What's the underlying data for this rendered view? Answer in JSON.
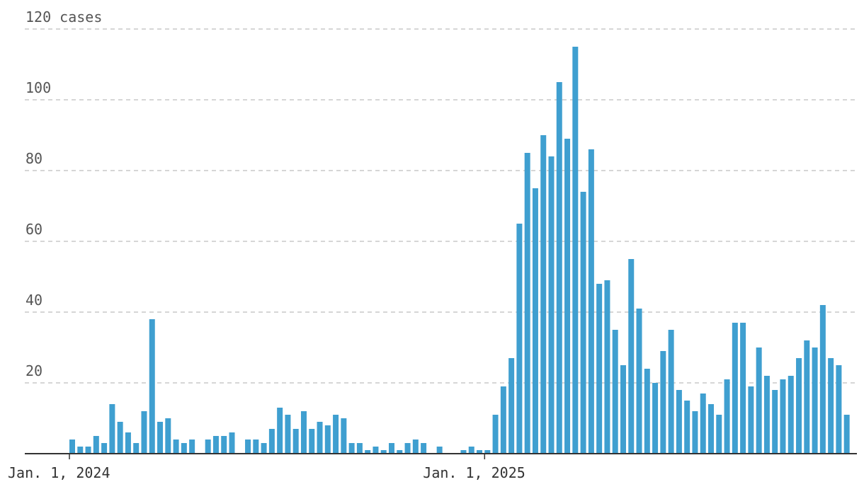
{
  "chart_data": {
    "type": "bar",
    "title": "",
    "xlabel": "",
    "ylabel": "",
    "y_unit": "cases",
    "ylim": [
      0,
      120
    ],
    "yticks": [
      20,
      40,
      60,
      80,
      100,
      120
    ],
    "grid": true,
    "color": "#3f9fd0",
    "x_ticks": [
      {
        "label": "Jan. 1, 2024",
        "week": 0
      },
      {
        "label": "Jan. 1, 2025",
        "week": 52
      }
    ],
    "series": [
      {
        "values": [
          4,
          2,
          2,
          5,
          3,
          14,
          9,
          6,
          3,
          12,
          38,
          9,
          10,
          4,
          3,
          4,
          0,
          4,
          5,
          5,
          6,
          0,
          4,
          4,
          3,
          7,
          13,
          11,
          7,
          12,
          7,
          9,
          8,
          11,
          10,
          3,
          3,
          1,
          2,
          1,
          3,
          1,
          3,
          4,
          3,
          0,
          2,
          0,
          0,
          1,
          2,
          1,
          1,
          11,
          19,
          27,
          65,
          85,
          75,
          90,
          84,
          105,
          89,
          115,
          74,
          86,
          48,
          49,
          35,
          25,
          55,
          41,
          24,
          20,
          29,
          35,
          18,
          15,
          12,
          17,
          14,
          11,
          21,
          37,
          37,
          19,
          30,
          22,
          18,
          21,
          22,
          27,
          32,
          30,
          42,
          27,
          25,
          11
        ]
      }
    ]
  }
}
